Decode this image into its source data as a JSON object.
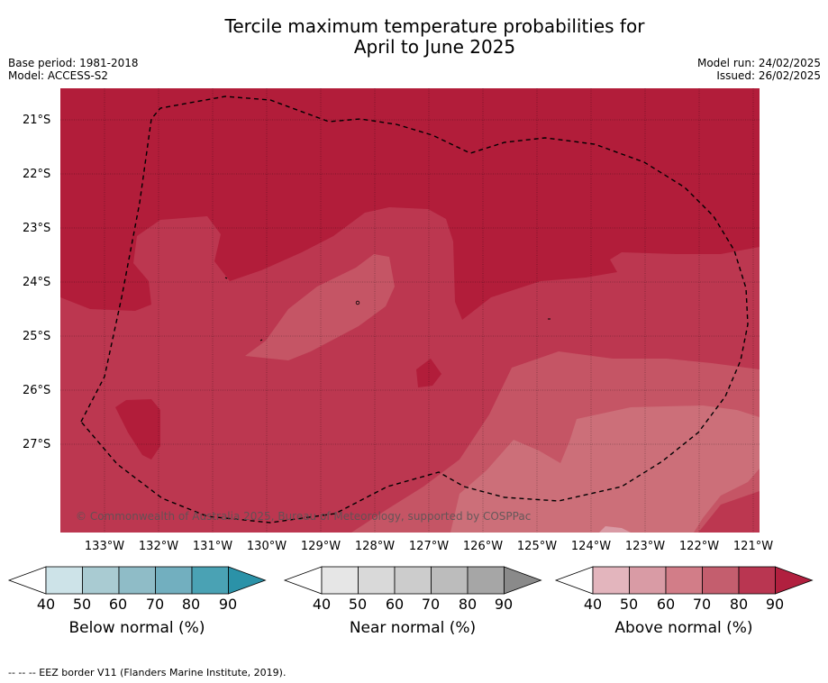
{
  "header": {
    "title_line1": "Tercile maximum temperature probabilities for",
    "title_line2": "April to June 2025",
    "base_period": "Base period: 1981-2018",
    "model": "Model: ACCESS-S2",
    "model_run": "Model run: 24/02/2025",
    "issued": "Issued: 26/02/2025"
  },
  "map": {
    "lat_labels": [
      "21°S",
      "22°S",
      "23°S",
      "24°S",
      "25°S",
      "26°S",
      "27°S"
    ],
    "lon_labels": [
      "133°W",
      "132°W",
      "131°W",
      "130°W",
      "129°W",
      "128°W",
      "127°W",
      "126°W",
      "125°W",
      "124°W",
      "123°W",
      "122°W",
      "121°W"
    ],
    "copyright": "© Commonwealth of Australia 2025, Bureau of Meteorology, supported by COSPPac",
    "colors": {
      "above_90": "#b21d3a",
      "above_80": "#bc3750",
      "above_70": "#c55565",
      "above_60": "#cc6f79"
    }
  },
  "legends": [
    {
      "title": "Below normal (%)",
      "ticks": [
        "40",
        "50",
        "60",
        "70",
        "80",
        "90"
      ],
      "colors": [
        "#cde3e8",
        "#a9cbd2",
        "#8fbcc7",
        "#72afbf",
        "#4aa2b4",
        "#2b92a8"
      ]
    },
    {
      "title": "Near normal (%)",
      "ticks": [
        "40",
        "50",
        "60",
        "70",
        "80",
        "90"
      ],
      "colors": [
        "#e6e6e6",
        "#d9d9d9",
        "#cccccc",
        "#bcbcbc",
        "#a6a6a6",
        "#8a8a8a"
      ]
    },
    {
      "title": "Above normal (%)",
      "ticks": [
        "40",
        "50",
        "60",
        "70",
        "80",
        "90"
      ],
      "colors": [
        "#e3b5bd",
        "#d99ba5",
        "#d27d88",
        "#c45e6e",
        "#b93651",
        "#b1203f"
      ]
    }
  ],
  "footer": "--  --  -- EEZ border V11 (Flanders Marine Institute, 2019)."
}
